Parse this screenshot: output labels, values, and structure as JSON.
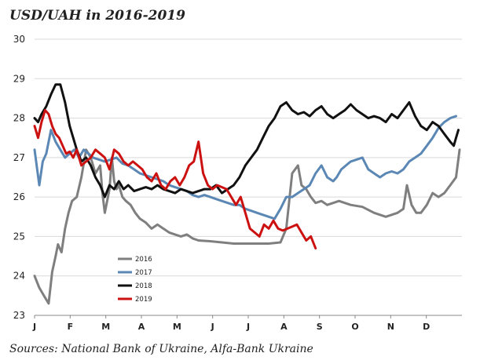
{
  "title": "USD/UAH in 2016-2019",
  "source": "Sources: National Bank of Ukraine, Alfa-Bank Ukraine",
  "chart_data": {
    "type": "line",
    "ylim": [
      23,
      30
    ],
    "yticks": [
      "23",
      "24",
      "25",
      "26",
      "27",
      "28",
      "29",
      "30"
    ],
    "xticks": [
      "J",
      "F",
      "M",
      "A",
      "M",
      "J",
      "J",
      "A",
      "S",
      "O",
      "N",
      "D"
    ],
    "xlim": [
      0,
      365
    ],
    "grid": "horizontal",
    "legend_position": "lower-left",
    "series": [
      {
        "name": "2016",
        "color": "#7f7f7f",
        "x": [
          0,
          4,
          8,
          12,
          15,
          18,
          20,
          23,
          26,
          29,
          32,
          36,
          40,
          44,
          48,
          52,
          56,
          58,
          60,
          64,
          66,
          68,
          70,
          72,
          75,
          78,
          82,
          86,
          90,
          95,
          100,
          105,
          110,
          115,
          120,
          125,
          130,
          135,
          140,
          150,
          160,
          170,
          180,
          190,
          200,
          210,
          215,
          220,
          225,
          228,
          232,
          236,
          240,
          245,
          250,
          255,
          260,
          270,
          280,
          290,
          300,
          305,
          310,
          315,
          318,
          322,
          326,
          330,
          335,
          340,
          345,
          350,
          355,
          360,
          363
        ],
        "y": [
          24.0,
          23.7,
          23.5,
          23.3,
          24.1,
          24.5,
          24.8,
          24.6,
          25.2,
          25.6,
          25.9,
          26.0,
          26.5,
          27.2,
          27.0,
          26.6,
          26.8,
          26.1,
          25.6,
          26.2,
          27.0,
          26.4,
          26.2,
          26.3,
          26.0,
          25.9,
          25.8,
          25.6,
          25.45,
          25.35,
          25.2,
          25.3,
          25.2,
          25.1,
          25.05,
          25.0,
          25.05,
          24.95,
          24.9,
          24.88,
          24.85,
          24.82,
          24.82,
          24.82,
          24.82,
          24.85,
          25.2,
          26.6,
          26.8,
          26.3,
          26.2,
          26.0,
          25.85,
          25.9,
          25.8,
          25.85,
          25.9,
          25.8,
          25.75,
          25.6,
          25.5,
          25.55,
          25.6,
          25.7,
          26.3,
          25.8,
          25.6,
          25.6,
          25.8,
          26.1,
          26.0,
          26.1,
          26.3,
          26.5,
          27.2
        ]
      },
      {
        "name": "2017",
        "color": "#5b87b5",
        "x": [
          0,
          4,
          7,
          10,
          14,
          18,
          22,
          26,
          30,
          34,
          38,
          42,
          46,
          50,
          55,
          60,
          65,
          70,
          75,
          80,
          85,
          90,
          95,
          100,
          105,
          110,
          115,
          120,
          125,
          130,
          135,
          140,
          145,
          150,
          155,
          160,
          165,
          170,
          175,
          180,
          185,
          190,
          195,
          200,
          205,
          210,
          215,
          220,
          225,
          230,
          235,
          240,
          245,
          250,
          255,
          258,
          262,
          266,
          270,
          275,
          280,
          285,
          290,
          295,
          300,
          305,
          310,
          315,
          320,
          325,
          330,
          335,
          340,
          345,
          350,
          355,
          360
        ],
        "y": [
          27.2,
          26.3,
          26.9,
          27.1,
          27.7,
          27.4,
          27.2,
          27.0,
          27.1,
          27.2,
          27.0,
          27.2,
          27.1,
          27.0,
          26.95,
          26.9,
          26.95,
          27.0,
          26.85,
          26.8,
          26.7,
          26.6,
          26.55,
          26.5,
          26.45,
          26.4,
          26.3,
          26.25,
          26.2,
          26.15,
          26.05,
          26.0,
          26.05,
          26.0,
          25.95,
          25.9,
          25.85,
          25.8,
          25.8,
          25.7,
          25.65,
          25.6,
          25.55,
          25.5,
          25.45,
          25.7,
          26.0,
          26.0,
          26.1,
          26.2,
          26.3,
          26.6,
          26.8,
          26.5,
          26.4,
          26.5,
          26.7,
          26.8,
          26.9,
          26.95,
          27.0,
          26.7,
          26.6,
          26.5,
          26.6,
          26.65,
          26.6,
          26.7,
          26.9,
          27.0,
          27.1,
          27.3,
          27.5,
          27.75,
          27.9,
          28.0,
          28.05
        ]
      },
      {
        "name": "2018",
        "color": "#111111",
        "x": [
          0,
          3,
          6,
          10,
          14,
          18,
          22,
          26,
          28,
          30,
          33,
          36,
          40,
          44,
          48,
          52,
          56,
          60,
          64,
          68,
          72,
          76,
          80,
          85,
          90,
          95,
          100,
          105,
          110,
          115,
          120,
          125,
          130,
          135,
          140,
          145,
          150,
          155,
          160,
          165,
          170,
          175,
          180,
          185,
          190,
          195,
          200,
          205,
          210,
          215,
          220,
          225,
          230,
          235,
          240,
          245,
          250,
          255,
          260,
          265,
          270,
          275,
          280,
          285,
          290,
          295,
          300,
          305,
          310,
          315,
          320,
          325,
          330,
          335,
          340,
          345,
          350,
          355,
          358,
          360,
          362
        ],
        "y": [
          28.0,
          27.9,
          28.1,
          28.3,
          28.6,
          28.85,
          28.85,
          28.4,
          28.1,
          27.8,
          27.5,
          27.2,
          26.9,
          27.0,
          26.8,
          26.5,
          26.3,
          26.0,
          26.3,
          26.2,
          26.4,
          26.2,
          26.3,
          26.15,
          26.2,
          26.25,
          26.2,
          26.3,
          26.2,
          26.15,
          26.1,
          26.2,
          26.15,
          26.1,
          26.15,
          26.2,
          26.2,
          26.3,
          26.1,
          26.2,
          26.3,
          26.5,
          26.8,
          27.0,
          27.2,
          27.5,
          27.8,
          28.0,
          28.3,
          28.4,
          28.2,
          28.1,
          28.15,
          28.05,
          28.2,
          28.3,
          28.1,
          28.0,
          28.1,
          28.2,
          28.35,
          28.2,
          28.1,
          28.0,
          28.05,
          28.0,
          27.9,
          28.1,
          28.0,
          28.2,
          28.4,
          28.05,
          27.8,
          27.7,
          27.9,
          27.8,
          27.6,
          27.4,
          27.3,
          27.5,
          27.7
        ]
      },
      {
        "name": "2019",
        "color": "#cc1111",
        "x": [
          0,
          3,
          6,
          9,
          12,
          15,
          18,
          21,
          24,
          27,
          30,
          33,
          36,
          40,
          44,
          48,
          52,
          56,
          60,
          64,
          68,
          72,
          76,
          80,
          84,
          88,
          92,
          96,
          100,
          104,
          108,
          112,
          116,
          120,
          124,
          128,
          132,
          136,
          140,
          144,
          148,
          152,
          156,
          160,
          164,
          168,
          172,
          176,
          180,
          184,
          188,
          192,
          196,
          200,
          204,
          208,
          212,
          216,
          220,
          224,
          228,
          232,
          236,
          240
        ],
        "y": [
          27.8,
          27.5,
          27.9,
          28.2,
          28.1,
          27.8,
          27.6,
          27.5,
          27.3,
          27.1,
          27.15,
          27.0,
          27.2,
          26.8,
          26.9,
          27.0,
          27.2,
          27.1,
          27.0,
          26.7,
          27.2,
          27.1,
          26.9,
          26.8,
          26.9,
          26.8,
          26.7,
          26.5,
          26.4,
          26.6,
          26.3,
          26.2,
          26.4,
          26.5,
          26.3,
          26.5,
          26.8,
          26.9,
          27.4,
          26.6,
          26.3,
          26.2,
          26.3,
          26.25,
          26.2,
          26.0,
          25.8,
          26.0,
          25.6,
          25.2,
          25.1,
          25.0,
          25.3,
          25.2,
          25.4,
          25.2,
          25.15,
          25.2,
          25.25,
          25.3,
          25.1,
          24.9,
          25.0,
          24.7
        ]
      }
    ]
  }
}
